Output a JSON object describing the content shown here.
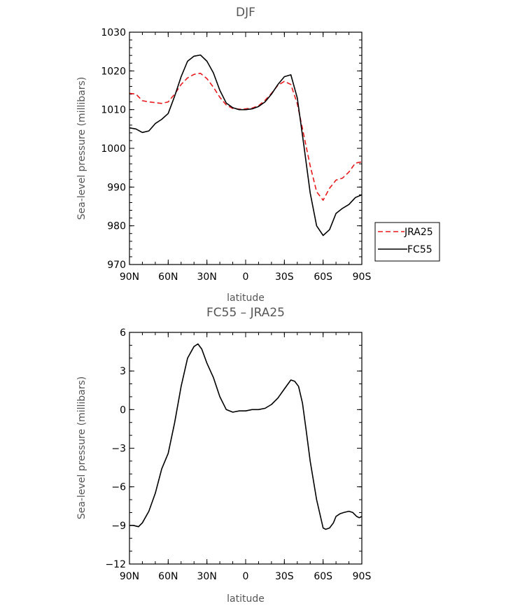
{
  "chart_data": [
    {
      "type": "line",
      "title": "DJF",
      "xlabel": "latitude",
      "ylabel": "Sea-level pressure (millibars)",
      "xlim": [
        -90,
        90
      ],
      "ylim": [
        970,
        1030
      ],
      "x_ticks": [
        -90,
        -60,
        -30,
        0,
        30,
        60,
        90
      ],
      "x_tick_labels": [
        "90N",
        "60N",
        "30N",
        "0",
        "30S",
        "60S",
        "90S"
      ],
      "y_ticks": [
        970,
        980,
        990,
        1000,
        1010,
        1020,
        1030
      ],
      "y_tick_labels": [
        "970",
        "980",
        "990",
        "1000",
        "1010",
        "1020",
        "1030"
      ],
      "legend": "right",
      "series": [
        {
          "name": "JRA25",
          "color": "#e8191c",
          "dash": "dashed",
          "x": [
            -90,
            -85,
            -80,
            -75,
            -70,
            -65,
            -60,
            -55,
            -50,
            -45,
            -40,
            -35,
            -30,
            -25,
            -20,
            -15,
            -10,
            -5,
            0,
            5,
            10,
            15,
            20,
            25,
            30,
            35,
            40,
            45,
            50,
            55,
            60,
            65,
            70,
            75,
            80,
            85,
            90
          ],
          "values": [
            1014.2,
            1014.0,
            1012.3,
            1012.0,
            1011.8,
            1011.6,
            1012.0,
            1014.0,
            1016.5,
            1018.2,
            1019.1,
            1019.4,
            1018.0,
            1015.8,
            1013.2,
            1011.2,
            1010.3,
            1010.1,
            1010.2,
            1010.4,
            1011.0,
            1012.4,
            1014.2,
            1016.3,
            1017.3,
            1016.5,
            1011.5,
            1003.5,
            995.5,
            988.8,
            986.6,
            989.7,
            991.8,
            992.3,
            993.9,
            996.2,
            996.5
          ]
        },
        {
          "name": "FC55",
          "color": "#000000",
          "dash": "solid",
          "x": [
            -90,
            -85,
            -80,
            -75,
            -70,
            -65,
            -60,
            -55,
            -50,
            -45,
            -40,
            -35,
            -30,
            -25,
            -20,
            -15,
            -10,
            -5,
            0,
            5,
            10,
            15,
            20,
            25,
            30,
            35,
            40,
            45,
            50,
            55,
            60,
            65,
            70,
            75,
            80,
            85,
            90
          ],
          "values": [
            1005.3,
            1005.0,
            1004.1,
            1004.5,
            1006.4,
            1007.5,
            1009.0,
            1013.5,
            1018.5,
            1022.5,
            1023.8,
            1024.1,
            1022.5,
            1019.5,
            1015.0,
            1011.7,
            1010.5,
            1010.0,
            1010.0,
            1010.2,
            1010.8,
            1012.0,
            1014.0,
            1016.5,
            1018.5,
            1019.0,
            1013.0,
            1001.0,
            988.5,
            980.0,
            977.5,
            979.0,
            983.2,
            984.5,
            985.5,
            987.3,
            988.0
          ]
        }
      ]
    },
    {
      "type": "line",
      "title": "FC55 – JRA25",
      "xlabel": "latitude",
      "ylabel": "Sea-level pressure (millibars)",
      "xlim": [
        -90,
        90
      ],
      "ylim": [
        -12,
        6
      ],
      "x_ticks": [
        -90,
        -60,
        -30,
        0,
        30,
        60,
        90
      ],
      "x_tick_labels": [
        "90N",
        "60N",
        "30N",
        "0",
        "30S",
        "60S",
        "90S"
      ],
      "y_ticks": [
        -12,
        -9,
        -6,
        -3,
        0,
        3,
        6
      ],
      "y_tick_labels": [
        "−12",
        "−9",
        "−6",
        "−3",
        "0",
        "3",
        "6"
      ],
      "series": [
        {
          "color": "#000000",
          "dash": "solid",
          "x": [
            -90,
            -87,
            -83,
            -80,
            -75,
            -70,
            -65,
            -60,
            -55,
            -50,
            -45,
            -40,
            -37,
            -34,
            -30,
            -25,
            -20,
            -15,
            -10,
            -5,
            0,
            5,
            10,
            15,
            20,
            25,
            30,
            35,
            38,
            41,
            44,
            47,
            50,
            55,
            60,
            62,
            65,
            68,
            70,
            73,
            76,
            80,
            83,
            86,
            88,
            90
          ],
          "values": [
            -9.0,
            -9.0,
            -9.1,
            -8.8,
            -7.9,
            -6.5,
            -4.6,
            -3.4,
            -1.0,
            1.8,
            4.0,
            4.9,
            5.1,
            4.7,
            3.6,
            2.5,
            1.0,
            0.0,
            -0.2,
            -0.1,
            -0.1,
            0.0,
            0.0,
            0.1,
            0.4,
            0.9,
            1.6,
            2.3,
            2.2,
            1.8,
            0.5,
            -1.7,
            -4.0,
            -7.0,
            -9.2,
            -9.3,
            -9.2,
            -8.8,
            -8.3,
            -8.1,
            -8.0,
            -7.9,
            -8.0,
            -8.3,
            -8.4,
            -8.3
          ]
        }
      ]
    }
  ]
}
